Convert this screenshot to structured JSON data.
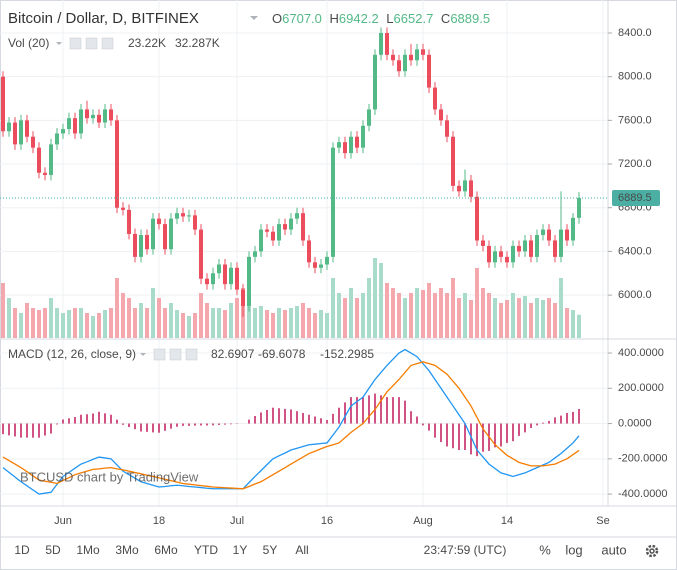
{
  "chart_data": {
    "type": "candlestick",
    "title": "Bitcoin / Dollar, D, BITFINEX",
    "ohlc_prefixes": [
      "O",
      "H",
      "L",
      "C"
    ],
    "ohlc_labels": [
      "6707.0",
      "6942.2",
      "6652.7",
      "6889.5"
    ],
    "up_color": "#53b987",
    "down_color": "#eb4d5c",
    "open": [
      8000,
      7500,
      7580,
      7380,
      7600,
      7450,
      7350,
      7120,
      7100,
      7380,
      7480,
      7520,
      7620,
      7480,
      7700,
      7620,
      7650,
      7580,
      7700,
      7600,
      6800,
      6780,
      6560,
      6350,
      6550,
      6420,
      6700,
      6650,
      6420,
      6700,
      6750,
      6720,
      6730,
      6600,
      6150,
      6100,
      6200,
      6280,
      6100,
      6250,
      6050,
      5900,
      6350,
      6400,
      6600,
      6580,
      6500,
      6650,
      6600,
      6700,
      6750,
      6500,
      6300,
      6250,
      6280,
      6350,
      7350,
      7400,
      7300,
      7450,
      7350,
      7550,
      7700,
      8200,
      8400,
      8200,
      8150,
      8050,
      8200,
      8150,
      8250,
      8200,
      7900,
      7700,
      7600,
      7450,
      7000,
      6950,
      7050,
      6900,
      6500,
      6450,
      6300,
      6400,
      6350,
      6300,
      6450,
      6400,
      6500,
      6350,
      6550,
      6600,
      6500,
      6350,
      6600,
      6500,
      6707
    ],
    "high": [
      8050,
      7630,
      7630,
      7650,
      7650,
      7500,
      7400,
      7170,
      7430,
      7530,
      7570,
      7670,
      7670,
      7750,
      7780,
      7700,
      7700,
      7750,
      7750,
      7650,
      6850,
      6830,
      6610,
      6600,
      6600,
      6750,
      6750,
      6700,
      6750,
      6800,
      6800,
      6780,
      6780,
      6650,
      6200,
      6250,
      6330,
      6330,
      6300,
      6300,
      6100,
      6400,
      6450,
      6650,
      6650,
      6630,
      6700,
      6700,
      6750,
      6800,
      6800,
      6550,
      6350,
      6330,
      6400,
      7400,
      7450,
      7450,
      7500,
      7500,
      7600,
      7750,
      8250,
      8450,
      8450,
      8250,
      8200,
      8250,
      8300,
      8300,
      8300,
      8250,
      7950,
      7750,
      7650,
      7500,
      7050,
      7150,
      7100,
      6950,
      6550,
      6500,
      6450,
      6450,
      6400,
      6500,
      6500,
      6550,
      6550,
      6600,
      6650,
      6650,
      6550,
      6950,
      6650,
      6750,
      6942.2
    ],
    "low": [
      7450,
      7450,
      7330,
      7330,
      7400,
      7300,
      7070,
      7050,
      7050,
      7330,
      7430,
      7470,
      7430,
      7430,
      7570,
      7570,
      7530,
      7530,
      7550,
      6750,
      6730,
      6510,
      6300,
      6300,
      6370,
      6370,
      6600,
      6370,
      6370,
      6650,
      6670,
      6670,
      6550,
      6100,
      6050,
      6050,
      6150,
      6050,
      6050,
      6000,
      5800,
      5850,
      6300,
      6350,
      6530,
      6450,
      6450,
      6550,
      6550,
      6650,
      6450,
      6250,
      6200,
      6200,
      6230,
      6300,
      7300,
      7250,
      7250,
      7300,
      7300,
      7500,
      7650,
      8150,
      8150,
      8100,
      8000,
      8000,
      8100,
      8100,
      8150,
      7850,
      7650,
      7550,
      7400,
      6950,
      6900,
      6900,
      6850,
      6450,
      6400,
      6250,
      6250,
      6300,
      6250,
      6250,
      6350,
      6350,
      6300,
      6300,
      6500,
      6450,
      6300,
      6300,
      6450,
      6450,
      6652.7
    ],
    "close": [
      7500,
      7580,
      7380,
      7600,
      7450,
      7350,
      7120,
      7100,
      7380,
      7480,
      7520,
      7620,
      7480,
      7700,
      7620,
      7650,
      7580,
      7700,
      7600,
      6800,
      6780,
      6560,
      6350,
      6550,
      6420,
      6700,
      6650,
      6420,
      6700,
      6750,
      6720,
      6730,
      6600,
      6150,
      6100,
      6200,
      6280,
      6100,
      6250,
      6050,
      5900,
      6350,
      6400,
      6600,
      6580,
      6500,
      6650,
      6600,
      6700,
      6750,
      6500,
      6300,
      6250,
      6280,
      6350,
      7350,
      7400,
      7300,
      7450,
      7350,
      7550,
      7700,
      8200,
      8400,
      8200,
      8150,
      8050,
      8200,
      8150,
      8250,
      8200,
      7900,
      7700,
      7600,
      7450,
      7000,
      6950,
      7050,
      6900,
      6500,
      6450,
      6300,
      6400,
      6350,
      6300,
      6450,
      6400,
      6500,
      6350,
      6550,
      6600,
      6500,
      6350,
      6600,
      6500,
      6707,
      6889.5
    ],
    "ylim": [
      5607,
      8702
    ],
    "yticks": [
      {
        "value": 6000,
        "label": "6000.0"
      },
      {
        "value": 6400,
        "label": "6400.0"
      },
      {
        "value": 6800,
        "label": "6800.0"
      },
      {
        "value": 7200,
        "label": "7200.0"
      },
      {
        "value": 7600,
        "label": "7600.0"
      },
      {
        "value": 8000,
        "label": "8000.0"
      },
      {
        "value": 8400,
        "label": "8400.0"
      }
    ],
    "last_price_label": "6889.5",
    "last_price_color": "#4bafa4",
    "xticks": [
      {
        "value": 10,
        "label": "Jun"
      },
      {
        "value": 26,
        "label": "18"
      },
      {
        "value": 39,
        "label": "Jul"
      },
      {
        "value": 54,
        "label": "16"
      },
      {
        "value": 70,
        "label": "Aug"
      },
      {
        "value": 84,
        "label": "14"
      },
      {
        "value": 100,
        "label": "Se"
      }
    ],
    "grid": true,
    "volume": {
      "title": "Vol (20)",
      "labels": [
        "23.22K",
        "32.287K"
      ],
      "label_colors": [
        "#26a69a",
        "#f57c00"
      ],
      "up_color": "#a8dbc9",
      "down_color": "#f4a7ad",
      "values": [
        55,
        40,
        30,
        25,
        35,
        30,
        28,
        30,
        40,
        30,
        25,
        28,
        30,
        30,
        25,
        22,
        25,
        28,
        30,
        60,
        45,
        40,
        30,
        35,
        30,
        50,
        40,
        30,
        35,
        28,
        25,
        22,
        25,
        45,
        35,
        30,
        30,
        28,
        35,
        40,
        50,
        40,
        30,
        32,
        28,
        25,
        30,
        28,
        30,
        32,
        35,
        30,
        25,
        28,
        25,
        60,
        45,
        40,
        50,
        40,
        45,
        60,
        80,
        75,
        55,
        50,
        45,
        40,
        45,
        50,
        48,
        55,
        45,
        50,
        45,
        60,
        40,
        45,
        38,
        70,
        50,
        45,
        40,
        35,
        38,
        45,
        40,
        42,
        35,
        40,
        38,
        40,
        35,
        60,
        30,
        28,
        23.22
      ]
    },
    "macd": {
      "title": "MACD (12, 26, close, 9)",
      "ylim": [
        -462,
        474
      ],
      "yticks": [
        {
          "value": -400,
          "label": "-400.0000"
        },
        {
          "value": -200,
          "label": "-200.0000"
        },
        {
          "value": 0,
          "label": "0.0000"
        },
        {
          "value": 200,
          "label": "200.0000"
        },
        {
          "value": 400,
          "label": "400.0000"
        }
      ],
      "series": [
        {
          "color": "#c2185b",
          "last_value_label": "82.6907",
          "values": [
            -60,
            -67,
            -73,
            -80,
            -80,
            -80,
            -80,
            -68,
            -57,
            -5,
            23,
            30,
            37,
            50,
            53,
            57,
            67,
            58,
            50,
            22,
            -7,
            -20,
            -32,
            -45,
            -47,
            -50,
            -52,
            -41,
            -29,
            -18,
            -13,
            -13,
            -12,
            -11,
            -11,
            -10,
            -8,
            -6,
            -4,
            -2,
            0,
            22,
            43,
            63,
            77,
            90,
            87,
            83,
            80,
            70,
            60,
            50,
            40,
            30,
            20,
            55,
            90,
            120,
            150,
            150,
            150,
            160,
            170,
            160,
            150,
            150,
            150,
            130,
            70,
            40,
            -10,
            -40,
            -80,
            -105,
            -130,
            -140,
            -150,
            -150,
            -175,
            -185,
            -160,
            -155,
            -135,
            -130,
            -110,
            -100,
            -70,
            -50,
            -25,
            -10,
            5,
            15,
            35,
            45,
            60,
            66,
            82.6907
          ]
        },
        {
          "color": "#2196f3",
          "last_value_label": "-69.6078",
          "values": [
            -250,
            -277,
            -303,
            -330,
            -353,
            -377,
            -400,
            -395,
            -390,
            -345,
            -300,
            -277,
            -253,
            -230,
            -217,
            -203,
            -190,
            -195,
            -200,
            -235,
            -270,
            -290,
            -310,
            -330,
            -340,
            -350,
            -360,
            -357,
            -353,
            -350,
            -353,
            -357,
            -360,
            -363,
            -367,
            -370,
            -370,
            -370,
            -370,
            -370,
            -370,
            -335,
            -300,
            -267,
            -233,
            -200,
            -183,
            -167,
            -150,
            -140,
            -130,
            -120,
            -117,
            -113,
            -110,
            -65,
            -20,
            40,
            100,
            125,
            150,
            200,
            250,
            290,
            330,
            365,
            400,
            420,
            400,
            380,
            340,
            300,
            250,
            200,
            150,
            100,
            50,
            0,
            -75,
            -150,
            -190,
            -230,
            -255,
            -280,
            -290,
            -300,
            -290,
            -280,
            -265,
            -250,
            -235,
            -220,
            -195,
            -170,
            -140,
            -110,
            -69.6078
          ]
        },
        {
          "color": "#f57c00",
          "last_value_label": "-152.2985",
          "values": [
            -190,
            -210,
            -230,
            -250,
            -273,
            -297,
            -320,
            -327,
            -333,
            -340,
            -323,
            -307,
            -290,
            -280,
            -270,
            -260,
            -257,
            -253,
            -250,
            -257,
            -263,
            -270,
            -278,
            -285,
            -293,
            -300,
            -308,
            -316,
            -324,
            -332,
            -340,
            -344,
            -348,
            -352,
            -356,
            -360,
            -362,
            -364,
            -366,
            -368,
            -370,
            -357,
            -343,
            -330,
            -310,
            -290,
            -270,
            -250,
            -230,
            -210,
            -190,
            -170,
            -157,
            -143,
            -130,
            -120,
            -110,
            -80,
            -50,
            -25,
            0,
            40,
            80,
            130,
            180,
            215,
            250,
            290,
            330,
            340,
            350,
            340,
            330,
            305,
            280,
            240,
            200,
            150,
            100,
            35,
            -30,
            -75,
            -120,
            -150,
            -180,
            -200,
            -220,
            -230,
            -240,
            -240,
            -240,
            -235,
            -230,
            -215,
            -200,
            -176,
            -152.2985
          ]
        }
      ]
    },
    "watermark": "BTCUSD chart by TradingView"
  },
  "toolbar": {
    "ranges": [
      "1D",
      "5D",
      "1Mo",
      "3Mo",
      "6Mo",
      "YTD",
      "1Y",
      "5Y",
      "All"
    ],
    "time": "23:47:59 (UTC)",
    "options": [
      "%",
      "log",
      "auto"
    ]
  }
}
